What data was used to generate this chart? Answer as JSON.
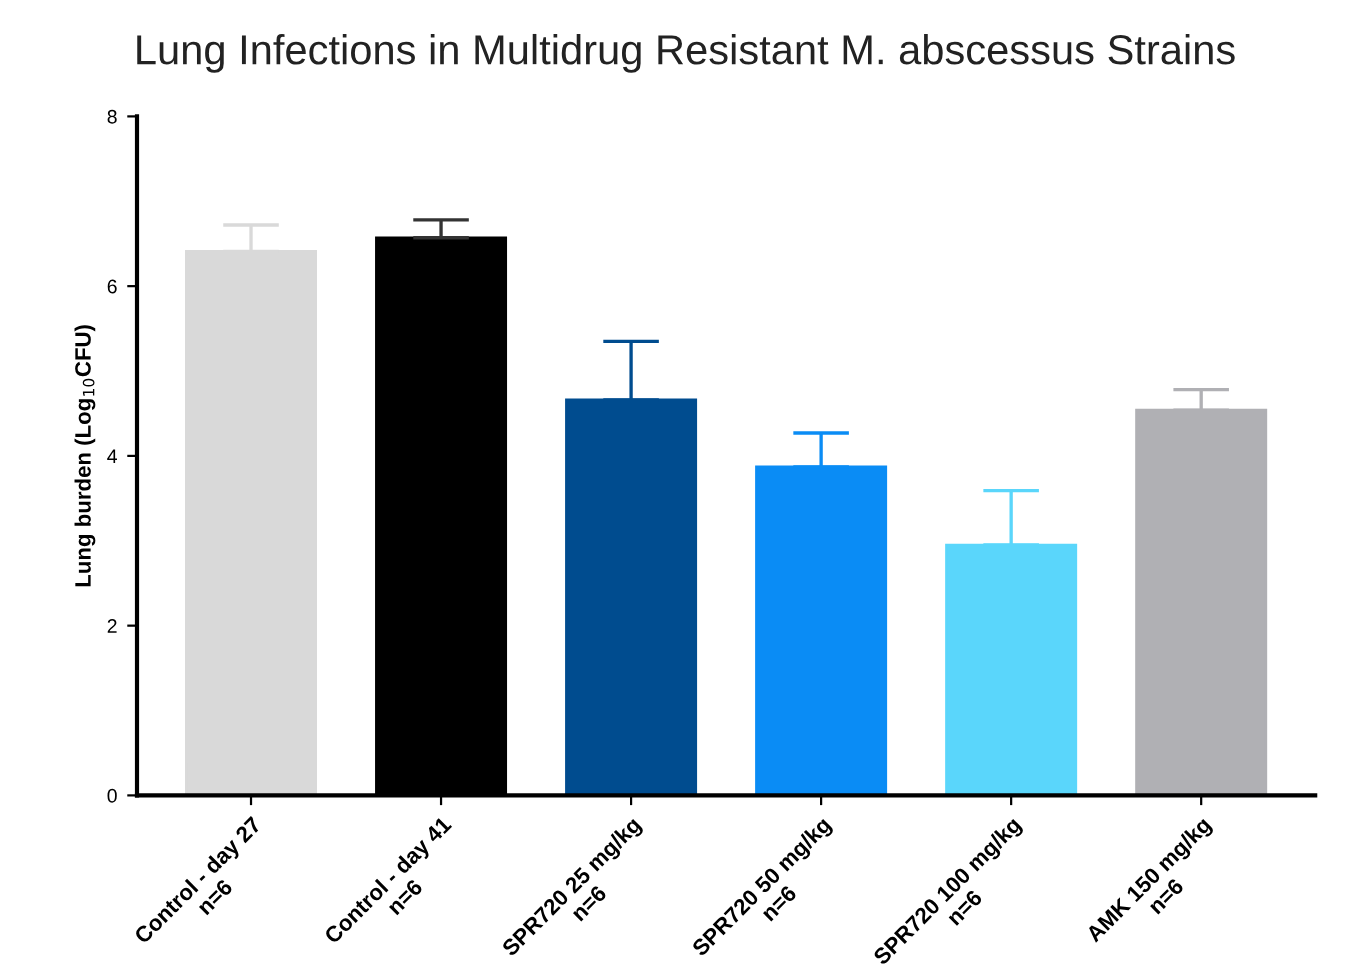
{
  "chart_data": {
    "type": "bar",
    "title": "Lung Infections in Multidrug Resistant M. abscessus Strains",
    "ylabel": "Lung burden (Log$_{10}$CFU)",
    "categories": [
      "Control - day 27\nn=6",
      "Control - day 41\nn=6",
      "SPR720 25 mg/kg\nn=6",
      "SPR720 50 mg/kg\nn=6",
      "SPR720 100 mg/kg\nn=6",
      "AMK 150 mg/kg\nn=6"
    ],
    "values": [
      6.41,
      6.57,
      4.66,
      3.87,
      2.95,
      4.54
    ],
    "errors": [
      [
        6.41,
        6.72
      ],
      [
        6.57,
        6.78
      ],
      [
        4.66,
        5.35
      ],
      [
        3.87,
        4.27
      ],
      [
        2.95,
        3.59
      ],
      [
        4.54,
        4.78
      ]
    ],
    "colors": [
      "#d9d9d9",
      "#000000",
      "#004c8f",
      "#0a8cf5",
      "#5ad6fb",
      "#b0b0b4"
    ],
    "ylim": [
      0,
      8
    ],
    "yticks": [
      0,
      2,
      4,
      6,
      8
    ],
    "grid": false,
    "legend": false
  }
}
